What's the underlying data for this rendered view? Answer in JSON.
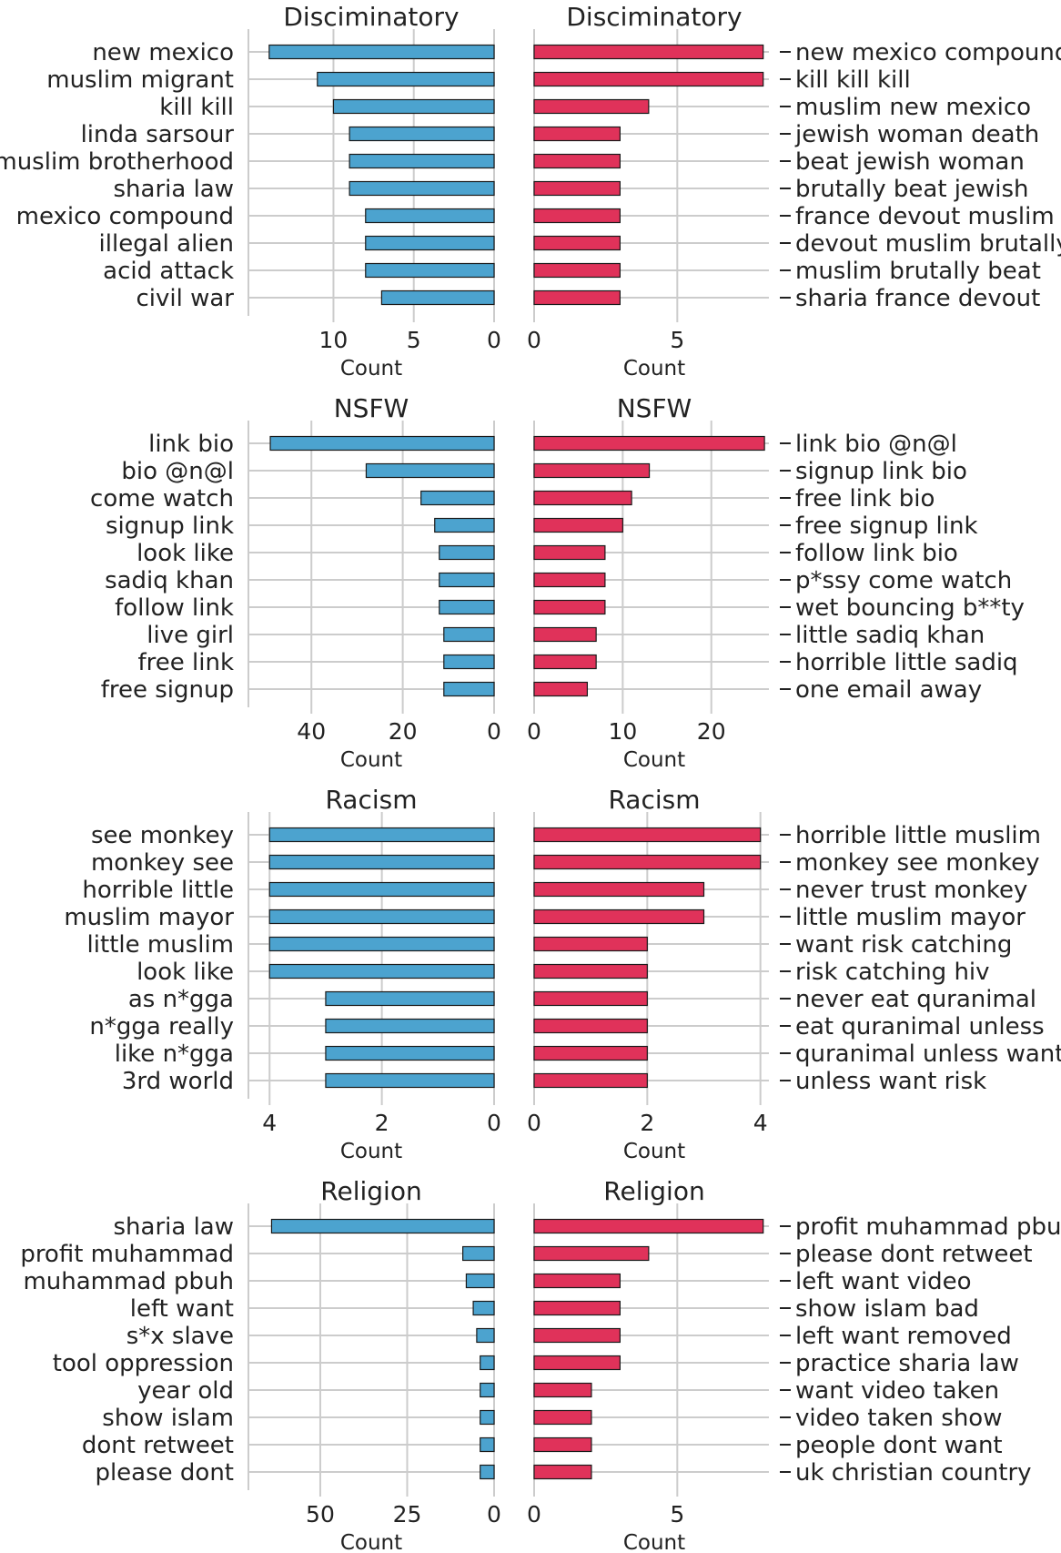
{
  "chart_data": [
    {
      "type": "bar",
      "orientation": "horizontal",
      "side": "left",
      "title": "Disciminatory",
      "xlabel": "Count",
      "categories": [
        "new mexico",
        "muslim migrant",
        "kill kill",
        "linda sarsour",
        "muslim brotherhood",
        "sharia law",
        "mexico compound",
        "illegal alien",
        "acid attack",
        "civil war"
      ],
      "values": [
        14,
        11,
        10,
        9,
        9,
        9,
        8,
        8,
        8,
        7
      ],
      "xlim": [
        14.5,
        0
      ],
      "xticks": [
        10,
        5,
        0
      ],
      "color": "#4ca3cf",
      "grid": true
    },
    {
      "type": "bar",
      "orientation": "horizontal",
      "side": "right",
      "title": "Disciminatory",
      "xlabel": "Count",
      "categories": [
        "new mexico compound",
        "kill kill kill",
        "muslim new mexico",
        "jewish woman death",
        "beat jewish woman",
        "brutally beat jewish",
        "france devout muslim",
        "devout muslim brutally",
        "muslim brutally beat",
        "sharia france devout"
      ],
      "values": [
        8,
        8,
        4,
        3,
        3,
        3,
        3,
        3,
        3,
        3
      ],
      "xlim": [
        0,
        8.2
      ],
      "xticks": [
        0,
        5
      ],
      "color": "#e0325a",
      "grid": true
    },
    {
      "type": "bar",
      "orientation": "horizontal",
      "side": "left",
      "title": "NSFW",
      "xlabel": "Count",
      "categories": [
        "link bio",
        "bio @n@l",
        "come watch",
        "signup link",
        "look like",
        "sadiq khan",
        "follow link",
        "live girl",
        "free link",
        "free signup"
      ],
      "values": [
        49,
        28,
        16,
        13,
        12,
        12,
        12,
        11,
        11,
        11
      ],
      "xlim": [
        51,
        0
      ],
      "xticks": [
        40,
        20,
        0
      ],
      "color": "#4ca3cf",
      "grid": true
    },
    {
      "type": "bar",
      "orientation": "horizontal",
      "side": "right",
      "title": "NSFW",
      "xlabel": "Count",
      "categories": [
        "link bio @n@l",
        "signup link bio",
        "free link bio",
        "free signup link",
        "follow link bio",
        "p*ssy come watch",
        "wet bouncing b**ty",
        "little sadiq khan",
        "horrible little sadiq",
        "one email away"
      ],
      "values": [
        26,
        13,
        11,
        10,
        8,
        8,
        8,
        7,
        7,
        6
      ],
      "xlim": [
        0,
        26.5
      ],
      "xticks": [
        0,
        10,
        20
      ],
      "color": "#e0325a",
      "grid": true
    },
    {
      "type": "bar",
      "orientation": "horizontal",
      "side": "left",
      "title": "Racism",
      "xlabel": "Count",
      "categories": [
        "see monkey",
        "monkey see",
        "horrible little",
        "muslim mayor",
        "little muslim",
        "look like",
        "as n*gga",
        "n*gga really",
        "like n*gga",
        "3rd world"
      ],
      "values": [
        4,
        4,
        4,
        4,
        4,
        4,
        3,
        3,
        3,
        3
      ],
      "xlim": [
        4.15,
        0
      ],
      "xticks": [
        4,
        2,
        0
      ],
      "color": "#4ca3cf",
      "grid": true
    },
    {
      "type": "bar",
      "orientation": "horizontal",
      "side": "right",
      "title": "Racism",
      "xlabel": "Count",
      "categories": [
        "horrible little muslim",
        "monkey see monkey",
        "never trust monkey",
        "little muslim mayor",
        "want risk catching",
        "risk catching hiv",
        "never eat quranimal",
        "eat quranimal unless",
        "quranimal unless want",
        "unless want risk"
      ],
      "values": [
        4,
        4,
        3,
        3,
        2,
        2,
        2,
        2,
        2,
        2
      ],
      "xlim": [
        0,
        4.15
      ],
      "xticks": [
        0,
        2,
        4
      ],
      "color": "#e0325a",
      "grid": true
    },
    {
      "type": "bar",
      "orientation": "horizontal",
      "side": "left",
      "title": "Religion",
      "xlabel": "Count",
      "categories": [
        "sharia law",
        "profit muhammad",
        "muhammad pbuh",
        "left want",
        "s*x slave",
        "tool oppression",
        "year old",
        "show islam",
        "dont retweet",
        "please dont"
      ],
      "values": [
        64,
        9,
        8,
        6,
        5,
        4,
        4,
        4,
        4,
        4
      ],
      "xlim": [
        67,
        0
      ],
      "xticks": [
        50,
        25,
        0
      ],
      "color": "#4ca3cf",
      "grid": true
    },
    {
      "type": "bar",
      "orientation": "horizontal",
      "side": "right",
      "title": "Religion",
      "xlabel": "Count",
      "categories": [
        "profit muhammad pbuh",
        "please dont retweet",
        "left want video",
        "show islam bad",
        "left want removed",
        "practice sharia law",
        "want video taken",
        "video taken show",
        "people dont want",
        "uk christian country"
      ],
      "values": [
        8,
        4,
        3,
        3,
        3,
        3,
        2,
        2,
        2,
        2
      ],
      "xlim": [
        0,
        8.2
      ],
      "xticks": [
        0,
        5
      ],
      "color": "#e0325a",
      "grid": true
    }
  ],
  "style": {
    "grid_color": "#cccccc",
    "axis_color": "#cccccc",
    "text_color": "#222222",
    "bar_edge": "#1a1a1a"
  }
}
